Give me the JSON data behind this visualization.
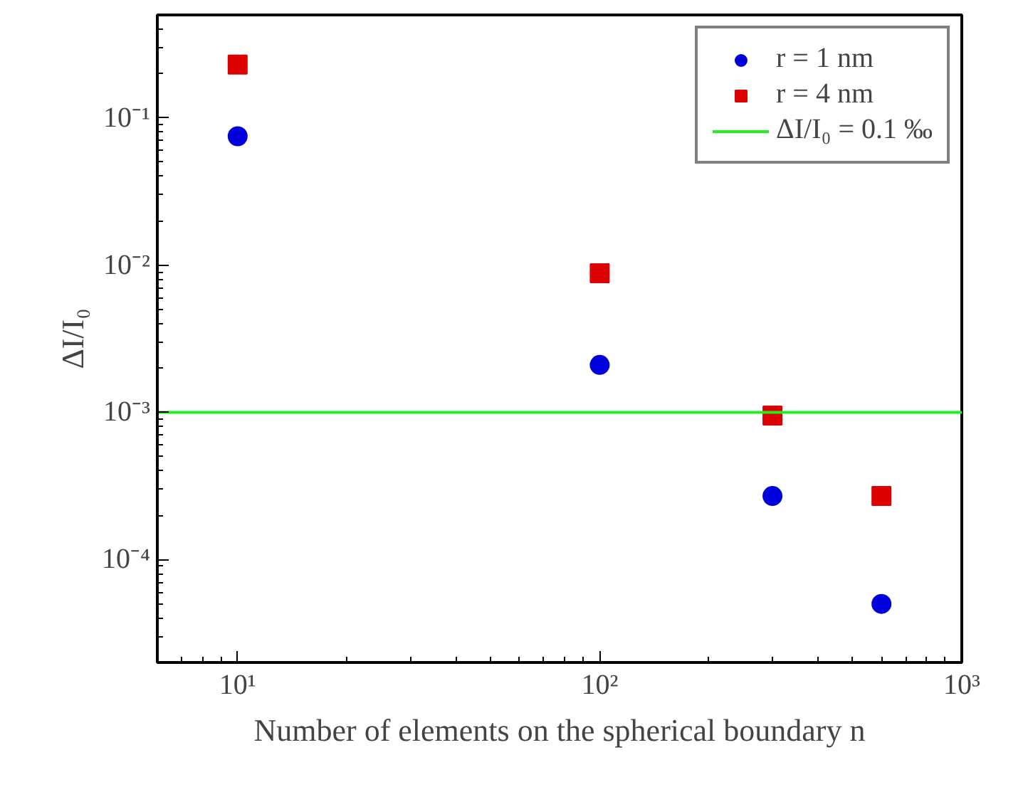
{
  "chart_data": {
    "type": "scatter",
    "xlabel": "Number of elements on the spherical boundary n",
    "ylabel": "ΔI/I₀",
    "log": "xy",
    "x": [
      10,
      100,
      300,
      600
    ],
    "series": [
      {
        "name": "r = 1 nm",
        "color": "#0000dd",
        "marker": "circle",
        "values": [
          0.075,
          0.0021,
          0.00027,
          5e-05
        ]
      },
      {
        "name": "r = 4 nm",
        "color": "#dd0000",
        "marker": "square",
        "values": [
          0.23,
          0.0088,
          0.00095,
          0.00027
        ]
      }
    ],
    "ref_lines": [
      {
        "axis": "y",
        "value": 0.001,
        "label": "ΔI/I₀ = 0.1 ‰",
        "color": "#22ee22",
        "line_style": "solid"
      }
    ],
    "xlim": [
      6,
      1000
    ],
    "ylim": [
      2e-05,
      0.5
    ],
    "xticks": [
      {
        "value": 10,
        "label": "10¹"
      },
      {
        "value": 100,
        "label": "10²"
      },
      {
        "value": 1000,
        "label": "10³"
      }
    ],
    "yticks": [
      {
        "value": 0.0001,
        "label": "10⁻⁴"
      },
      {
        "value": 0.001,
        "label": "10⁻³"
      },
      {
        "value": 0.01,
        "label": "10⁻²"
      },
      {
        "value": 0.1,
        "label": "10⁻¹"
      }
    ],
    "legend": "top right",
    "grid": false
  }
}
